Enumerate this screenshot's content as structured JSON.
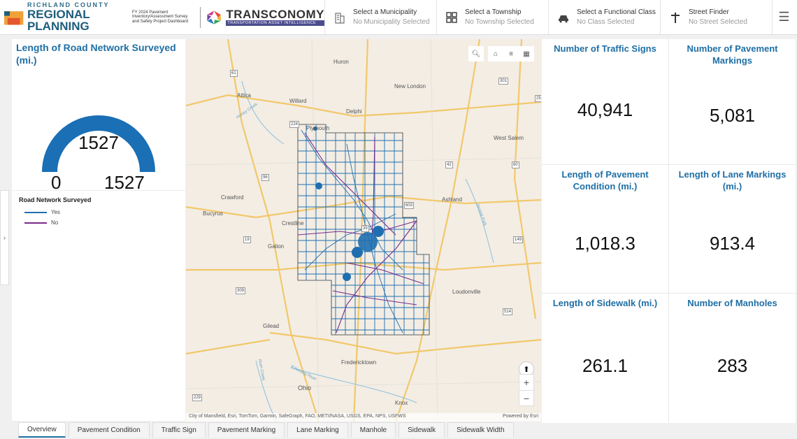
{
  "header": {
    "county_label": "RICHLAND COUNTY",
    "org_title": "REGIONAL PLANNING",
    "org_subtitle": "FY 2024 Pavement Inventory/Assessment Survey and Safety Project Dashboard",
    "vendor_name": "TRANSCONOMY",
    "vendor_tagline": "TRANSPORTATION ASSET INTELLIGENCE"
  },
  "selectors": [
    {
      "label": "Select a Municipality",
      "value": "No Municipality Selected",
      "icon": "building-icon"
    },
    {
      "label": "Select a Township",
      "value": "No Township Selected",
      "icon": "grid-icon"
    },
    {
      "label": "Select a Functional Class",
      "value": "No Class Selected",
      "icon": "car-icon"
    },
    {
      "label": "Street Finder",
      "value": "No Street Selected",
      "icon": "signpost-icon"
    }
  ],
  "gauge": {
    "title": "Length of Road Network Surveyed (mi.)",
    "value": "1527",
    "min": "0",
    "max": "1527",
    "fraction": 1.0,
    "color": "#1a6fb5"
  },
  "legend": {
    "title": "Road Network Surveyed",
    "items": [
      {
        "label": "Yes",
        "color": "#1f6fb0"
      },
      {
        "label": "No",
        "color": "#7b2a8c"
      }
    ]
  },
  "map": {
    "towns": [
      "Huron",
      "New London",
      "Attica",
      "Willard",
      "Delphi",
      "Plymouth",
      "West Salem",
      "Crawford",
      "Ashland",
      "Bucyrus",
      "Crestline",
      "Galion",
      "Loudonville",
      "Gilead",
      "Fredericktown",
      "Ohio",
      "Knox",
      "Honey Creek",
      "Jerome Fork",
      "Alum Creek",
      "Kokosing River"
    ],
    "roads": [
      "61",
      "250",
      "301",
      "224",
      "42",
      "96",
      "60",
      "603",
      "39",
      "19",
      "149",
      "309",
      "514",
      "229"
    ],
    "attribution": "City of Mansfield, Esri, TomTom, Garmin, SafeGraph, FAO, METI/NASA, USGS, EPA, NPS, USFWS",
    "powered_by": "Powered by Esri"
  },
  "metrics": [
    {
      "title": "Number of Traffic Signs",
      "value": "40,941"
    },
    {
      "title": "Number of Pavement Markings",
      "value": "5,081"
    },
    {
      "title": "Length of Pavement Condition (mi.)",
      "value": "1,018.3"
    },
    {
      "title": "Length of Lane Markings (mi.)",
      "value": "913.4"
    },
    {
      "title": "Length of Sidewalk (mi.)",
      "value": "261.1"
    },
    {
      "title": "Number of Manholes",
      "value": "283"
    }
  ],
  "tabs": [
    "Overview",
    "Pavement Condition",
    "Traffic Sign",
    "Pavement Marking",
    "Lane Marking",
    "Manhole",
    "Sidewalk",
    "Sidewalk Width"
  ],
  "active_tab": "Overview"
}
